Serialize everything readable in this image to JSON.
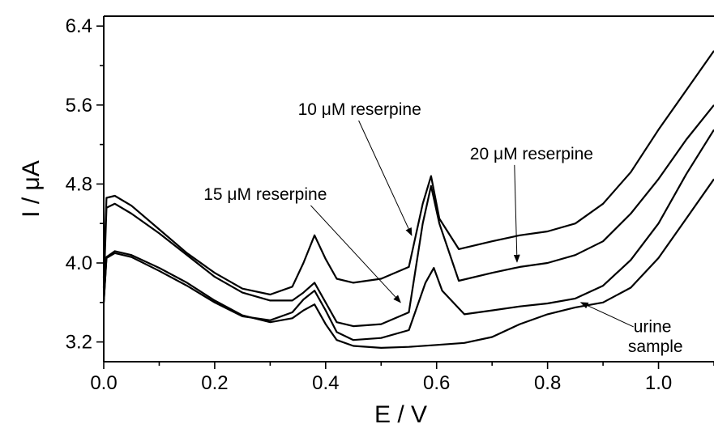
{
  "chart_data": {
    "type": "line",
    "title": "",
    "xlabel": "E / V",
    "ylabel": "I / μA",
    "xlim": [
      0.0,
      1.1
    ],
    "ylim": [
      3.0,
      6.5
    ],
    "xticks": [
      0.0,
      0.2,
      0.4,
      0.6,
      0.8,
      1.0
    ],
    "xtick_labels": [
      "0.0",
      "0.2",
      "0.4",
      "0.6",
      "0.8",
      "1.0"
    ],
    "yticks": [
      3.2,
      4.0,
      4.8,
      5.6,
      6.4
    ],
    "ytick_labels": [
      "3.2",
      "4.0",
      "4.8",
      "5.6",
      "6.4"
    ],
    "grid": false,
    "legend": "none",
    "series": [
      {
        "x": [
          0.0,
          0.005,
          0.02,
          0.05,
          0.1,
          0.15,
          0.2,
          0.25,
          0.3,
          0.34,
          0.36,
          0.38,
          0.4,
          0.42,
          0.45,
          0.5,
          0.55,
          0.6,
          0.65,
          0.7,
          0.75,
          0.8,
          0.85,
          0.9,
          0.95,
          1.0,
          1.05,
          1.1
        ],
        "y": [
          3.6,
          4.06,
          4.12,
          4.08,
          3.95,
          3.8,
          3.62,
          3.47,
          3.4,
          3.44,
          3.52,
          3.58,
          3.38,
          3.22,
          3.16,
          3.14,
          3.15,
          3.17,
          3.19,
          3.25,
          3.38,
          3.48,
          3.55,
          3.6,
          3.75,
          4.05,
          4.45,
          4.85
        ]
      },
      {
        "x": [
          0.0,
          0.005,
          0.02,
          0.05,
          0.1,
          0.15,
          0.2,
          0.25,
          0.3,
          0.34,
          0.36,
          0.38,
          0.4,
          0.42,
          0.45,
          0.5,
          0.55,
          0.58,
          0.595,
          0.61,
          0.65,
          0.7,
          0.75,
          0.8,
          0.85,
          0.9,
          0.95,
          1.0,
          1.05,
          1.1
        ],
        "y": [
          3.6,
          4.05,
          4.1,
          4.06,
          3.92,
          3.77,
          3.6,
          3.46,
          3.42,
          3.5,
          3.63,
          3.72,
          3.52,
          3.3,
          3.22,
          3.24,
          3.32,
          3.8,
          3.95,
          3.72,
          3.48,
          3.52,
          3.56,
          3.59,
          3.64,
          3.77,
          4.03,
          4.4,
          4.9,
          5.35
        ]
      },
      {
        "x": [
          0.0,
          0.005,
          0.02,
          0.05,
          0.1,
          0.15,
          0.2,
          0.25,
          0.3,
          0.34,
          0.36,
          0.38,
          0.4,
          0.42,
          0.45,
          0.5,
          0.55,
          0.575,
          0.59,
          0.605,
          0.64,
          0.7,
          0.75,
          0.8,
          0.85,
          0.9,
          0.95,
          1.0,
          1.05,
          1.1
        ],
        "y": [
          3.75,
          4.56,
          4.6,
          4.5,
          4.3,
          4.08,
          3.86,
          3.7,
          3.62,
          3.62,
          3.7,
          3.8,
          3.6,
          3.4,
          3.36,
          3.38,
          3.5,
          4.4,
          4.78,
          4.4,
          3.82,
          3.9,
          3.96,
          4.0,
          4.08,
          4.22,
          4.5,
          4.85,
          5.25,
          5.6
        ]
      },
      {
        "x": [
          0.0,
          0.005,
          0.02,
          0.05,
          0.1,
          0.15,
          0.2,
          0.25,
          0.3,
          0.34,
          0.36,
          0.38,
          0.4,
          0.42,
          0.45,
          0.5,
          0.55,
          0.575,
          0.59,
          0.605,
          0.64,
          0.7,
          0.75,
          0.8,
          0.85,
          0.9,
          0.95,
          1.0,
          1.05,
          1.1
        ],
        "y": [
          3.85,
          4.66,
          4.68,
          4.58,
          4.34,
          4.1,
          3.9,
          3.74,
          3.68,
          3.76,
          4.0,
          4.28,
          4.04,
          3.84,
          3.8,
          3.84,
          3.96,
          4.6,
          4.88,
          4.45,
          4.14,
          4.22,
          4.28,
          4.32,
          4.4,
          4.6,
          4.92,
          5.35,
          5.75,
          6.15
        ]
      }
    ],
    "annotations": [
      {
        "text": "10 μM reserpine",
        "x": 0.35,
        "y": 5.5,
        "arrow_to": [
          0.555,
          4.28
        ]
      },
      {
        "text": "20 μM reserpine",
        "x": 0.66,
        "y": 5.05,
        "arrow_to": [
          0.745,
          4.01
        ]
      },
      {
        "text": "15 μM reserpine",
        "x": 0.18,
        "y": 4.64,
        "arrow_to": [
          0.535,
          3.6
        ]
      },
      {
        "text": "urine",
        "x": 0.955,
        "y": 3.3,
        "arrow_to": [
          0.86,
          3.6
        ]
      },
      {
        "text": "sample",
        "x": 0.945,
        "y": 3.1,
        "arrow_to": null
      }
    ]
  }
}
